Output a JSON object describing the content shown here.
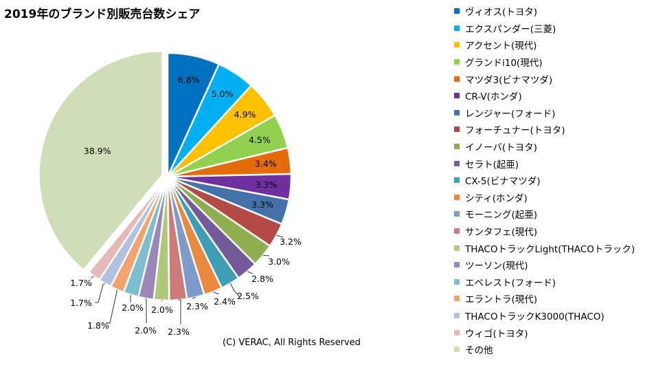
{
  "chart_data": {
    "type": "pie",
    "title": "2019年のブランド別販売台数シェア",
    "slices": [
      {
        "label": "ヴィオス(トヨタ)",
        "value": 6.8,
        "display": "6.8%",
        "color": "#0070C0"
      },
      {
        "label": "エクスパンダー(三菱)",
        "value": 5.0,
        "display": "5.0%",
        "color": "#00B0F0"
      },
      {
        "label": "アクセント(現代)",
        "value": 4.9,
        "display": "4.9%",
        "color": "#FFC000"
      },
      {
        "label": "グランドi10(現代)",
        "value": 4.5,
        "display": "4.5%",
        "color": "#92D050"
      },
      {
        "label": "マツダ3(ビナマツダ)",
        "value": 3.4,
        "display": "3.4%",
        "color": "#E46C0A"
      },
      {
        "label": "CR-V(ホンダ)",
        "value": 3.3,
        "display": "3.3%",
        "color": "#7030A0"
      },
      {
        "label": "レンジャー(フォード)",
        "value": 3.3,
        "display": "3.3%",
        "color": "#4472A8"
      },
      {
        "label": "フォーチュナー(トヨタ)",
        "value": 3.2,
        "display": "3.2%",
        "color": "#B34A46"
      },
      {
        "label": "イノーバ(トヨタ)",
        "value": 3.0,
        "display": "3.0%",
        "color": "#8FAE4F"
      },
      {
        "label": "セラト(起亜)",
        "value": 2.8,
        "display": "2.8%",
        "color": "#735A98"
      },
      {
        "label": "CX-5(ビナマツダ)",
        "value": 2.5,
        "display": "2.5%",
        "color": "#3E9EB5"
      },
      {
        "label": "シティ(ホンダ)",
        "value": 2.4,
        "display": "2.4%",
        "color": "#E8893F"
      },
      {
        "label": "モーニング(起亜)",
        "value": 2.3,
        "display": "2.3%",
        "color": "#7D9CCB"
      },
      {
        "label": "サンタフェ(現代)",
        "value": 2.3,
        "display": "2.3%",
        "color": "#CC7B79"
      },
      {
        "label": "THACOトラックLight(THACOトラック)",
        "value": 2.0,
        "display": "2.0%",
        "color": "#AFC97A"
      },
      {
        "label": "ツーソン(現代)",
        "value": 2.0,
        "display": "2.0%",
        "color": "#9C88B8"
      },
      {
        "label": "エベレスト(フォード)",
        "value": 2.0,
        "display": "2.0%",
        "color": "#7CBECF"
      },
      {
        "label": "エラントラ(現代)",
        "value": 1.8,
        "display": "1.8%",
        "color": "#F3A46E"
      },
      {
        "label": "THACOトラックK3000(THACO)",
        "value": 1.7,
        "display": "1.7%",
        "color": "#B2C1DF"
      },
      {
        "label": "ウィゴ(トヨタ)",
        "value": 1.7,
        "display": "1.7%",
        "color": "#E4B9B8"
      },
      {
        "label": "その他",
        "value": 38.9,
        "display": "38.9%",
        "color": "#CFDDB9"
      }
    ],
    "legend_position": "right"
  },
  "footer": {
    "copyright": "(C) VERAC, All Rights Reserved"
  }
}
